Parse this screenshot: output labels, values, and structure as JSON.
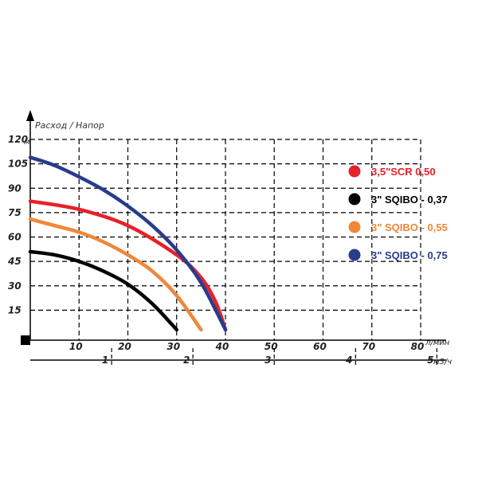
{
  "chart_data": {
    "type": "line",
    "title": "Расход / Напор",
    "ylabel_unit": "м",
    "xlabel_unit": "л/мин",
    "x2label_unit": "м3/ч",
    "xlim": [
      0,
      80
    ],
    "ylim": [
      0,
      120
    ],
    "x_ticks": [
      "10",
      "20",
      "30",
      "40",
      "50",
      "60",
      "70",
      "80"
    ],
    "y_ticks": [
      "15",
      "30",
      "45",
      "60",
      "75",
      "90",
      "105",
      "120"
    ],
    "x2_ticks": [
      "1",
      "2",
      "3",
      "4",
      "5"
    ],
    "x2_tick_positions_lpm": [
      16.67,
      33.33,
      50,
      66.67,
      83.33
    ],
    "grid": true,
    "legend_position": "right",
    "series": [
      {
        "name": "3,5\"SCR 0,50",
        "color": "#e8202a",
        "x": [
          0,
          10,
          20,
          30,
          35,
          38,
          40
        ],
        "y": [
          82,
          77,
          67,
          49,
          35,
          20,
          3
        ]
      },
      {
        "name": "3\" SQIBO - 0,37",
        "color": "#000000",
        "x": [
          0,
          5,
          10,
          15,
          20,
          25,
          30
        ],
        "y": [
          51,
          49,
          45,
          39,
          31,
          19,
          3
        ]
      },
      {
        "name": "3\" SQIBO - 0,55",
        "color": "#f0873a",
        "x": [
          0,
          5,
          10,
          15,
          20,
          25,
          30,
          35
        ],
        "y": [
          71,
          67,
          63,
          57,
          49,
          39,
          24,
          3
        ]
      },
      {
        "name": "3\" SQIBO - 0,75",
        "color": "#283c8c",
        "x": [
          0,
          5,
          10,
          15,
          20,
          25,
          30,
          35,
          40
        ],
        "y": [
          109,
          104,
          97,
          89,
          79,
          67,
          52,
          32,
          3
        ]
      }
    ]
  }
}
